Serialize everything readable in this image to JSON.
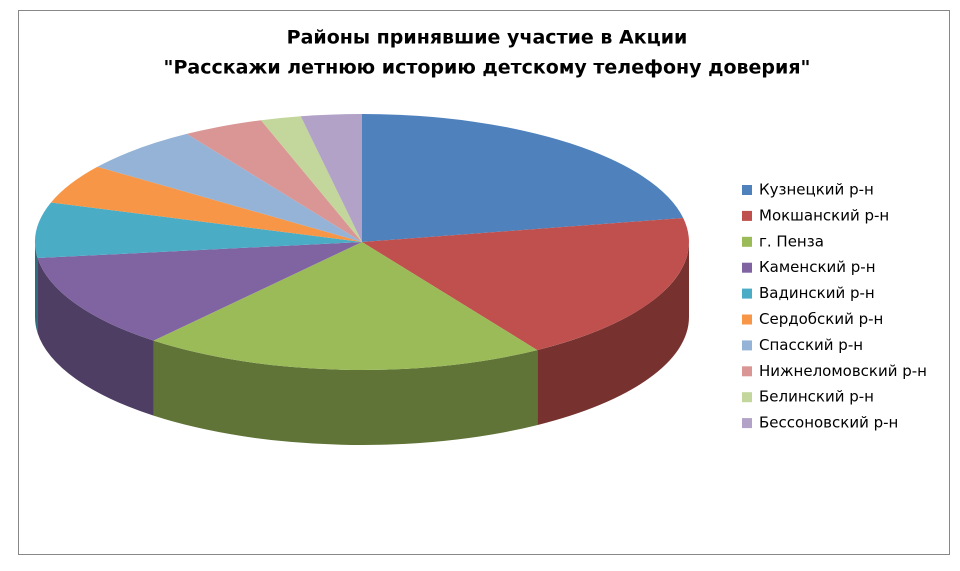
{
  "chart_data": {
    "type": "pie3d",
    "title": [
      "Районы принявшие участие в Акции",
      "\"Расскажи летнюю историю детскому телефону доверия\""
    ],
    "categories": [
      "Кузнецкий р-н",
      "Мокшанский р-н",
      "г. Пенза",
      "Каменский р-н",
      "Вадинский р-н",
      "Сердобский р-н",
      "Спасский р-н",
      "Нижнеломовский р-н",
      "Белинский р-н",
      "Бессоновский р-н"
    ],
    "values": [
      22,
      19,
      20,
      12,
      7,
      5,
      6,
      4,
      2,
      3
    ],
    "colors": [
      "#4F81BD",
      "#C0504D",
      "#9BBB59",
      "#8064A2",
      "#4BACC6",
      "#F79646",
      "#95B3D7",
      "#D99694",
      "#C3D69B",
      "#B2A2C7"
    ],
    "legend": "right"
  }
}
